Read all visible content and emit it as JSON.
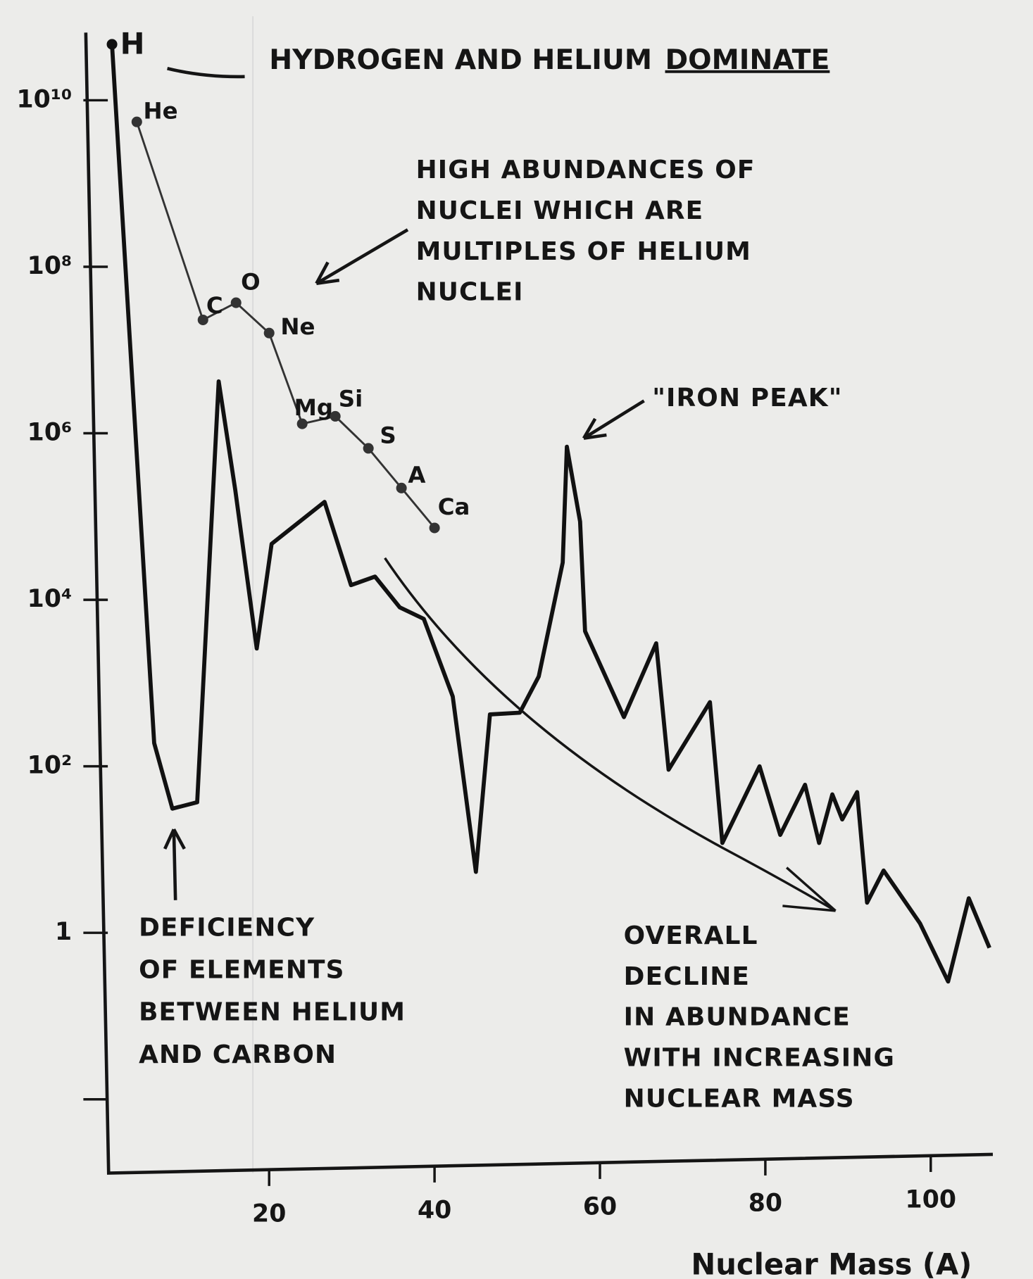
{
  "chart_data": {
    "type": "line",
    "title": "HYDROGEN AND HELIUM",
    "title_emphasis": "DOMINATE",
    "x_label": "Nuclear Mass (A)",
    "log_y": true,
    "xlim": [
      0,
      108
    ],
    "ylim": [
      0.0013,
      65000000000
    ],
    "xticks": [
      20,
      40,
      60,
      80,
      100
    ],
    "yticks": [
      {
        "value": 10000000000,
        "label": "10¹⁰"
      },
      {
        "value": 100000000,
        "label": "10⁸"
      },
      {
        "value": 1000000,
        "label": "10⁶"
      },
      {
        "value": 10000,
        "label": "10⁴"
      },
      {
        "value": 100,
        "label": "10²"
      },
      1,
      {
        "value": 0.01,
        "label": null
      }
    ],
    "series": [
      {
        "color": "#111111",
        "point_labels": [
          "H"
        ],
        "x": [
          1,
          6.1,
          8.3,
          11.3,
          13.9,
          15.9,
          18.5,
          20.3,
          26.7,
          29.9,
          32.8,
          35.8,
          38.7,
          42.2,
          45.0,
          46.7,
          50.3,
          52.6,
          55.5,
          56.0,
          57.6,
          58.2,
          62.9,
          66.8,
          68.3,
          73.3,
          74.8,
          79.3,
          81.8,
          84.8,
          86.5,
          88.1,
          89.3,
          91.1,
          92.3,
          94.3,
          98.7,
          102.1,
          104.6,
          107.1
        ],
        "values": [
          47000000000,
          190,
          31,
          37,
          4200000,
          210000,
          2600,
          47000,
          150000,
          15000,
          19000,
          8100,
          5900,
          690,
          5.4,
          420,
          440,
          1200,
          28000,
          690000,
          87000,
          4200,
          390,
          3000,
          91,
          590,
          12,
          100,
          15,
          60,
          12,
          46,
          23,
          49,
          2.3,
          5.6,
          1.3,
          0.26,
          2.6,
          0.66
        ]
      },
      {
        "color": "#333333",
        "point_labels": [
          "He",
          "C",
          "O",
          "Ne",
          "Mg",
          "Si",
          "S",
          "A",
          "Ca"
        ],
        "x": [
          4,
          12,
          16,
          20,
          24,
          28,
          32,
          36,
          40
        ],
        "values": [
          5500000000,
          23000000,
          37000000,
          16000000,
          1300000,
          1600000,
          660000,
          220000,
          73000
        ]
      }
    ],
    "annotations": [
      {
        "lines": [
          "HIGH ABUNDANCES OF",
          "NUCLEI WHICH ARE",
          "MULTIPLES OF HELIUM",
          "NUCLEI"
        ]
      },
      {
        "lines": [
          "\"IRON PEAK\""
        ]
      },
      {
        "lines": [
          "DEFICIENCY",
          "OF ELEMENTS",
          "BETWEEN HELIUM",
          "AND CARBON"
        ]
      },
      {
        "lines": [
          "OVERALL",
          "DECLINE",
          "IN ABUNDANCE",
          "WITH INCREASING",
          "NUCLEAR MASS"
        ]
      }
    ]
  }
}
